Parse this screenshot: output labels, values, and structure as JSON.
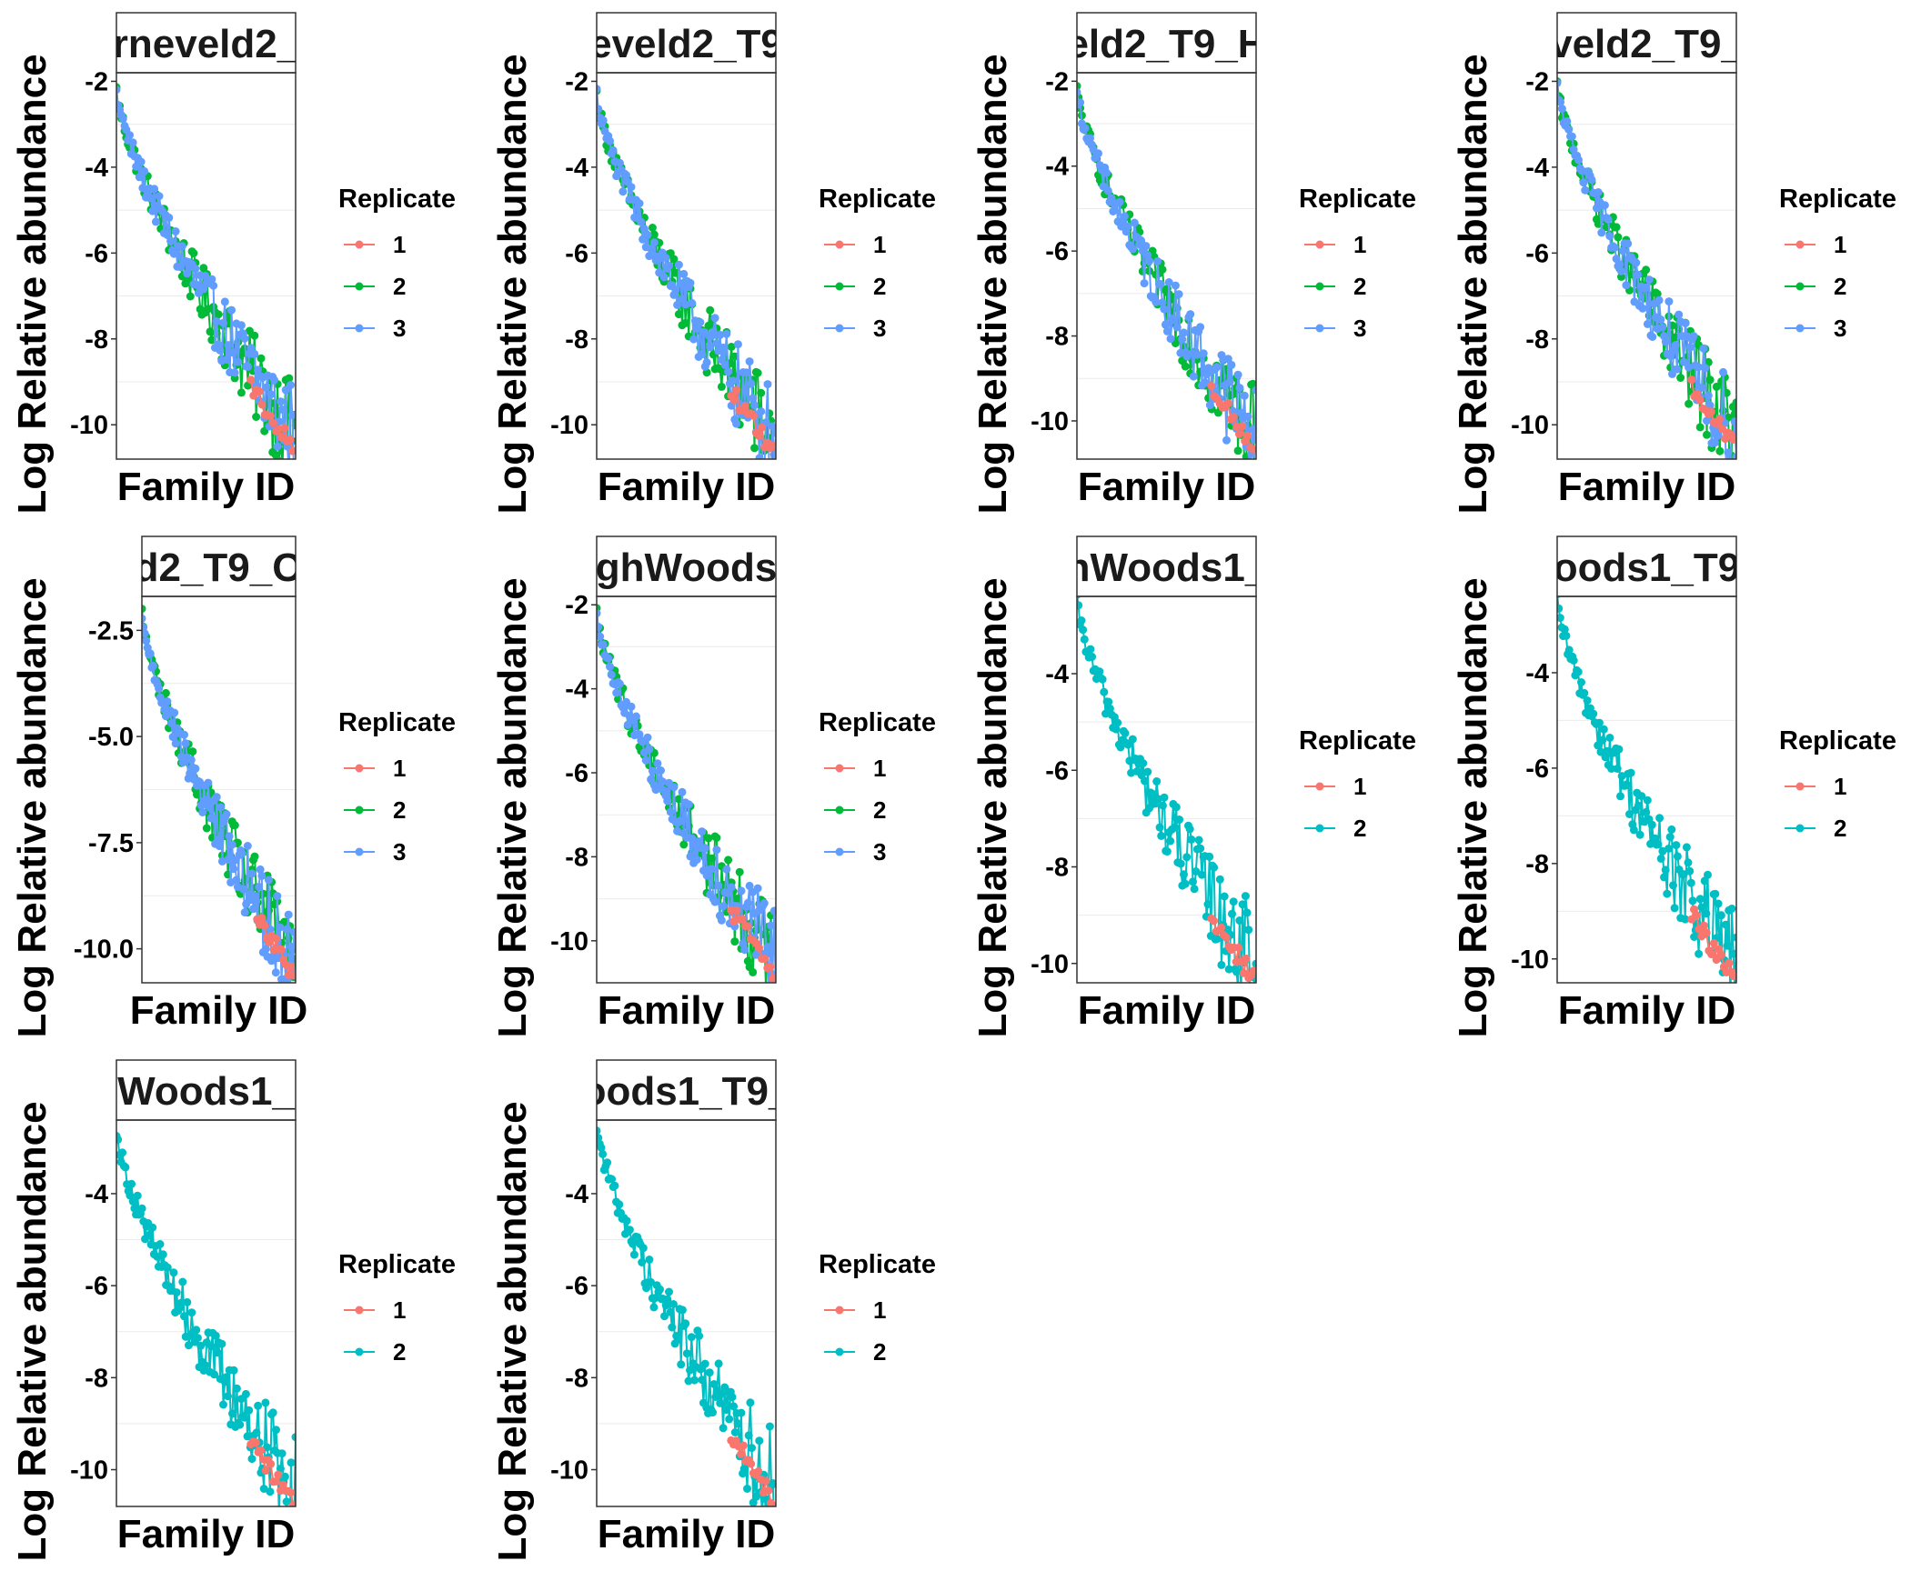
{
  "figure": {
    "common": {
      "xlabel": "Family ID",
      "ylabel": "Log Relative abundance",
      "legend_title": "Replicate"
    },
    "colors": {
      "1": "#F8766D",
      "2": "#00BA38",
      "3": "#619CFF",
      "2b": "#00BFC4"
    }
  },
  "chart_data": [
    {
      "type": "line",
      "title": "rneveld2_",
      "replicates": [
        "1",
        "2",
        "3"
      ],
      "colors": [
        "#F8766D",
        "#00BA38",
        "#619CFF"
      ],
      "ylim": [
        -10.8,
        -1.8
      ],
      "yticks": [
        -2,
        -4,
        -6,
        -8,
        -10
      ],
      "ytick_labels": [
        "-2",
        "-4",
        "-6",
        "-8",
        "-10"
      ],
      "xlabel": "Family ID",
      "ylabel": "Log Relative abundance",
      "legend_title": "Replicate",
      "n_points": 110,
      "x_range": [
        1,
        100
      ],
      "y_start": -2.2,
      "y_end": -10.3
    },
    {
      "type": "line",
      "title": "eveld2_T9",
      "replicates": [
        "1",
        "2",
        "3"
      ],
      "colors": [
        "#F8766D",
        "#00BA38",
        "#619CFF"
      ],
      "ylim": [
        -10.8,
        -1.8
      ],
      "yticks": [
        -2,
        -4,
        -6,
        -8,
        -10
      ],
      "ytick_labels": [
        "-2",
        "-4",
        "-6",
        "-8",
        "-10"
      ],
      "xlabel": "Family ID",
      "ylabel": "Log Relative abundance",
      "legend_title": "Replicate",
      "n_points": 110,
      "x_range": [
        1,
        100
      ],
      "y_start": -2.3,
      "y_end": -10.4
    },
    {
      "type": "line",
      "title": "eld2_T9_H",
      "replicates": [
        "1",
        "2",
        "3"
      ],
      "colors": [
        "#F8766D",
        "#00BA38",
        "#619CFF"
      ],
      "ylim": [
        -10.9,
        -1.8
      ],
      "yticks": [
        -2,
        -4,
        -6,
        -8,
        -10
      ],
      "ytick_labels": [
        "-2",
        "-4",
        "-6",
        "-8",
        "-10"
      ],
      "xlabel": "Family ID",
      "ylabel": "Log Relative abundance",
      "legend_title": "Replicate",
      "n_points": 110,
      "x_range": [
        1,
        100
      ],
      "y_start": -2.2,
      "y_end": -10.4
    },
    {
      "type": "line",
      "title": "veld2_T9_",
      "replicates": [
        "1",
        "2",
        "3"
      ],
      "colors": [
        "#F8766D",
        "#00BA38",
        "#619CFF"
      ],
      "ylim": [
        -10.8,
        -1.8
      ],
      "yticks": [
        -2,
        -4,
        -6,
        -8,
        -10
      ],
      "ytick_labels": [
        "-2",
        "-4",
        "-6",
        "-8",
        "-10"
      ],
      "xlabel": "Family ID",
      "ylabel": "Log Relative abundance",
      "legend_title": "Replicate",
      "n_points": 110,
      "x_range": [
        1,
        100
      ],
      "y_start": -2.1,
      "y_end": -10.3
    },
    {
      "type": "line",
      "title": "d2_T9_O",
      "replicates": [
        "1",
        "2",
        "3"
      ],
      "colors": [
        "#F8766D",
        "#00BA38",
        "#619CFF"
      ],
      "ylim": [
        -10.8,
        -1.7
      ],
      "yticks": [
        -2.5,
        -5.0,
        -7.5,
        -10.0
      ],
      "ytick_labels": [
        "-2.5",
        "-5.0",
        "-7.5",
        "-10.0"
      ],
      "xlabel": "Family ID",
      "ylabel": "Log Relative abundance",
      "legend_title": "Replicate",
      "n_points": 110,
      "x_range": [
        1,
        100
      ],
      "y_start": -2.1,
      "y_end": -10.4
    },
    {
      "type": "line",
      "title": "ghWoods",
      "replicates": [
        "1",
        "2",
        "3"
      ],
      "colors": [
        "#F8766D",
        "#00BA38",
        "#619CFF"
      ],
      "ylim": [
        -11.0,
        -1.8
      ],
      "yticks": [
        -2,
        -4,
        -6,
        -8,
        -10
      ],
      "ytick_labels": [
        "-2",
        "-4",
        "-6",
        "-8",
        "-10"
      ],
      "xlabel": "Family ID",
      "ylabel": "Log Relative abundance",
      "legend_title": "Replicate",
      "n_points": 110,
      "x_range": [
        1,
        100
      ],
      "y_start": -2.2,
      "y_end": -10.5
    },
    {
      "type": "line",
      "title": "hWoods1_",
      "replicates": [
        "1",
        "2"
      ],
      "colors": [
        "#F8766D",
        "#00BFC4"
      ],
      "ylim": [
        -10.4,
        -2.4
      ],
      "yticks": [
        -4,
        -6,
        -8,
        -10
      ],
      "ytick_labels": [
        "-4",
        "-6",
        "-8",
        "-10"
      ],
      "xlabel": "Family ID",
      "ylabel": "Log Relative abundance",
      "legend_title": "Replicate",
      "n_points": 120,
      "x_range": [
        1,
        100
      ],
      "y_start": -2.5,
      "y_end": -10.1
    },
    {
      "type": "line",
      "title": "oods1_T9",
      "replicates": [
        "1",
        "2"
      ],
      "colors": [
        "#F8766D",
        "#00BFC4"
      ],
      "ylim": [
        -10.5,
        -2.4
      ],
      "yticks": [
        -4,
        -6,
        -8,
        -10
      ],
      "ytick_labels": [
        "-4",
        "-6",
        "-8",
        "-10"
      ],
      "xlabel": "Family ID",
      "ylabel": "Log Relative abundance",
      "legend_title": "Replicate",
      "n_points": 120,
      "x_range": [
        1,
        100
      ],
      "y_start": -2.5,
      "y_end": -10.2
    },
    {
      "type": "line",
      "title": "Woods1_",
      "replicates": [
        "1",
        "2"
      ],
      "colors": [
        "#F8766D",
        "#00BFC4"
      ],
      "ylim": [
        -10.8,
        -2.4
      ],
      "yticks": [
        -4,
        -6,
        -8,
        -10
      ],
      "ytick_labels": [
        "-4",
        "-6",
        "-8",
        "-10"
      ],
      "xlabel": "Family ID",
      "ylabel": "Log Relative abundance",
      "legend_title": "Replicate",
      "n_points": 120,
      "x_range": [
        1,
        100
      ],
      "y_start": -2.6,
      "y_end": -10.5
    },
    {
      "type": "line",
      "title": "oods1_T9_",
      "replicates": [
        "1",
        "2"
      ],
      "colors": [
        "#F8766D",
        "#00BFC4"
      ],
      "ylim": [
        -10.8,
        -2.4
      ],
      "yticks": [
        -4,
        -6,
        -8,
        -10
      ],
      "ytick_labels": [
        "-4",
        "-6",
        "-8",
        "-10"
      ],
      "xlabel": "Family ID",
      "ylabel": "Log Relative abundance",
      "legend_title": "Replicate",
      "n_points": 120,
      "x_range": [
        1,
        100
      ],
      "y_start": -2.5,
      "y_end": -10.4
    }
  ]
}
